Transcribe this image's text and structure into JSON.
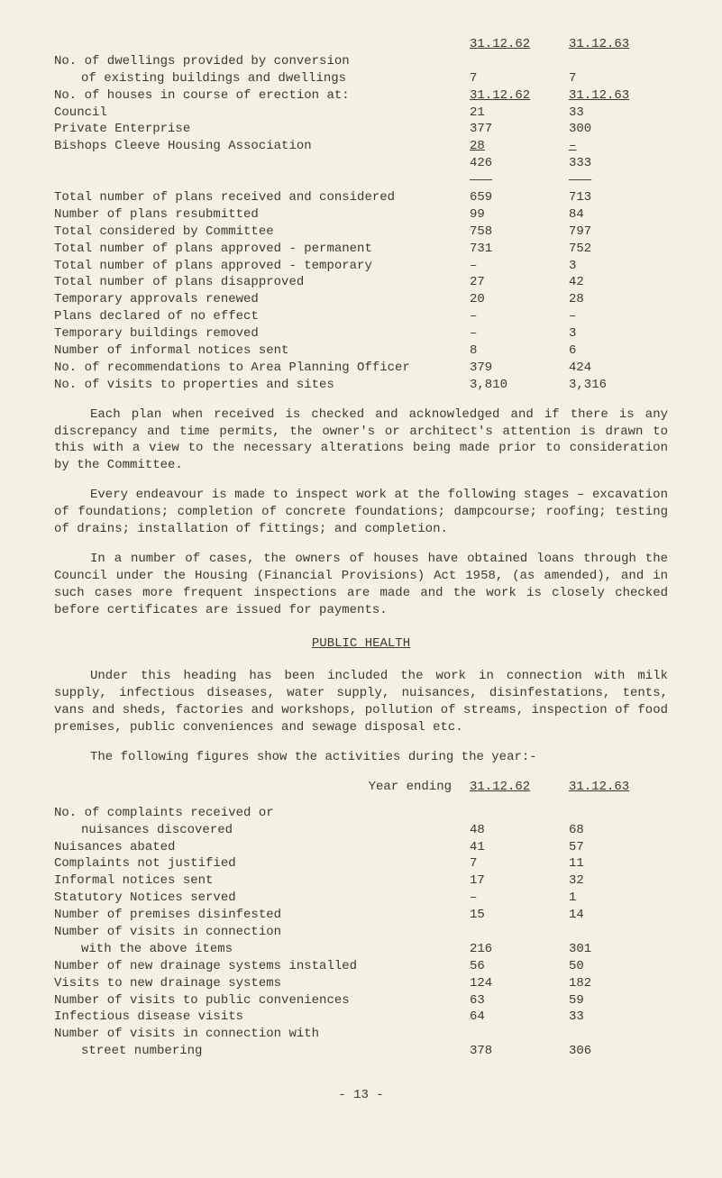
{
  "top_dates": {
    "d1": "31.12.62",
    "d2": "31.12.63"
  },
  "t1": [
    {
      "label": "No. of dwellings provided by conversion",
      "c1": "",
      "c2": ""
    },
    {
      "label": "of existing buildings and dwellings",
      "c1": "7",
      "c2": "7",
      "sub": true
    },
    {
      "label": "",
      "c1": "",
      "c2": ""
    },
    {
      "label": "No. of houses in course of erection at:",
      "c1": "31.12.62",
      "c2": "31.12.63",
      "under": true
    },
    {
      "label": "",
      "c1": "",
      "c2": ""
    },
    {
      "label": "Council",
      "c1": "21",
      "c2": "33"
    },
    {
      "label": "Private Enterprise",
      "c1": "377",
      "c2": "300"
    },
    {
      "label": "Bishops Cleeve Housing Association",
      "c1": " 28",
      "c2": " –",
      "under": true
    },
    {
      "label": "",
      "c1": "426",
      "c2": "333"
    },
    {
      "label": "",
      "c1": "———",
      "c2": "———"
    },
    {
      "label": "Total number of plans received and considered",
      "c1": "659",
      "c2": "713"
    },
    {
      "label": "Number of plans resubmitted",
      "c1": "99",
      "c2": "84"
    },
    {
      "label": "Total considered by Committee",
      "c1": "758",
      "c2": "797"
    },
    {
      "label": "Total number of plans approved - permanent",
      "c1": "731",
      "c2": "752"
    },
    {
      "label": "Total number of plans approved - temporary",
      "c1": "–",
      "c2": "3"
    },
    {
      "label": "Total number of plans disapproved",
      "c1": "27",
      "c2": "42"
    },
    {
      "label": "Temporary approvals renewed",
      "c1": "20",
      "c2": "28"
    },
    {
      "label": "Plans declared of no effect",
      "c1": "–",
      "c2": "–"
    },
    {
      "label": "Temporary buildings removed",
      "c1": "–",
      "c2": "3"
    },
    {
      "label": "Number of informal notices sent",
      "c1": "8",
      "c2": "6"
    },
    {
      "label": "No. of recommendations to Area Planning Officer",
      "c1": "379",
      "c2": "424"
    },
    {
      "label": "No. of visits to properties and sites",
      "c1": "3,810",
      "c2": "3,316"
    }
  ],
  "p1": "Each plan when received is checked and acknowledged and if there is any discrepancy and time permits, the owner's or architect's attention is drawn to this with a view to the necessary alterations being made prior to consideration by the Committee.",
  "p2": "Every endeavour is made to inspect work at the following stages – excavation of foundations; completion of concrete foundations; dampcourse; roofing; testing of drains; installation of fittings; and completion.",
  "p3": "In a number of cases, the owners of houses have obtained loans through the Council under the Housing (Financial Provisions) Act 1958, (as amended), and in such cases more frequent inspections are made and the work is closely checked before certificates are issued for payments.",
  "section": "PUBLIC HEALTH",
  "p4": "Under this heading has been included the work in connection with milk supply, infectious diseases, water supply, nuisances, disinfestations, tents, vans and sheds, factories and workshops, pollution of streams, inspection of food premises, public conveniences and sewage disposal etc.",
  "p5": "The following figures show the activities during the year:-",
  "year_ending": "Year ending",
  "t2dates": {
    "d1": "31.12.62",
    "d2": "31.12.63"
  },
  "t2": [
    {
      "label": "No. of complaints received or",
      "c1": "",
      "c2": ""
    },
    {
      "label": "nuisances discovered",
      "c1": "48",
      "c2": "68",
      "sub": true
    },
    {
      "label": "Nuisances abated",
      "c1": "41",
      "c2": "57"
    },
    {
      "label": "Complaints not justified",
      "c1": "7",
      "c2": "11"
    },
    {
      "label": "Informal notices sent",
      "c1": "17",
      "c2": "32"
    },
    {
      "label": "Statutory Notices served",
      "c1": "–",
      "c2": "1"
    },
    {
      "label": "Number of premises disinfested",
      "c1": "15",
      "c2": "14"
    },
    {
      "label": "Number of visits in connection",
      "c1": "",
      "c2": ""
    },
    {
      "label": "with the above items",
      "c1": "216",
      "c2": "301",
      "sub": true
    },
    {
      "label": "Number of new drainage systems installed",
      "c1": "56",
      "c2": "50"
    },
    {
      "label": "Visits to new drainage systems",
      "c1": "124",
      "c2": "182"
    },
    {
      "label": "Number of visits to public conveniences",
      "c1": "63",
      "c2": "59"
    },
    {
      "label": "Infectious disease visits",
      "c1": "64",
      "c2": "33"
    },
    {
      "label": "Number of visits in connection with",
      "c1": "",
      "c2": ""
    },
    {
      "label": "street numbering",
      "c1": "378",
      "c2": "306",
      "sub": true
    }
  ],
  "page": "- 13 -"
}
